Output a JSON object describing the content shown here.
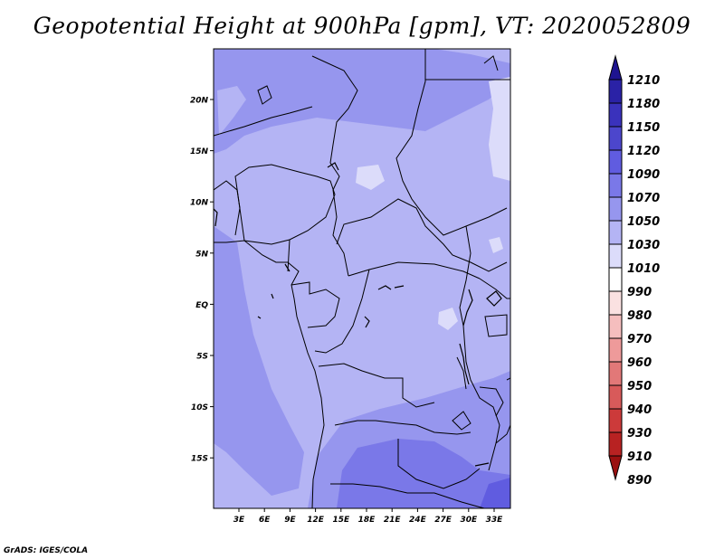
{
  "title": "Geopotential Height at 900hPa [gpm], VT: 2020052809",
  "footer": "GrADS: IGES/COLA",
  "map": {
    "lat_labels": [
      "20N",
      "15N",
      "10N",
      "5N",
      "EQ",
      "5S",
      "10S",
      "15S"
    ],
    "lon_labels": [
      "3E",
      "6E",
      "9E",
      "12E",
      "15E",
      "18E",
      "21E",
      "24E",
      "27E",
      "30E",
      "33E"
    ]
  },
  "colorbar": {
    "labels": [
      "1210",
      "1180",
      "1150",
      "1120",
      "1090",
      "1070",
      "1050",
      "1030",
      "1010",
      "990",
      "980",
      "970",
      "960",
      "950",
      "940",
      "930",
      "910",
      "890"
    ],
    "colors": [
      "#1e1490",
      "#2a22a6",
      "#3a32bc",
      "#4c46cc",
      "#605ce0",
      "#7a78e8",
      "#9696ee",
      "#b4b4f4",
      "#dcdcfa",
      "#ffffff",
      "#fae1e1",
      "#f5bebe",
      "#ee9a9a",
      "#e27878",
      "#d85a5a",
      "#cc3a3a",
      "#b82222",
      "#9a1010"
    ]
  }
}
